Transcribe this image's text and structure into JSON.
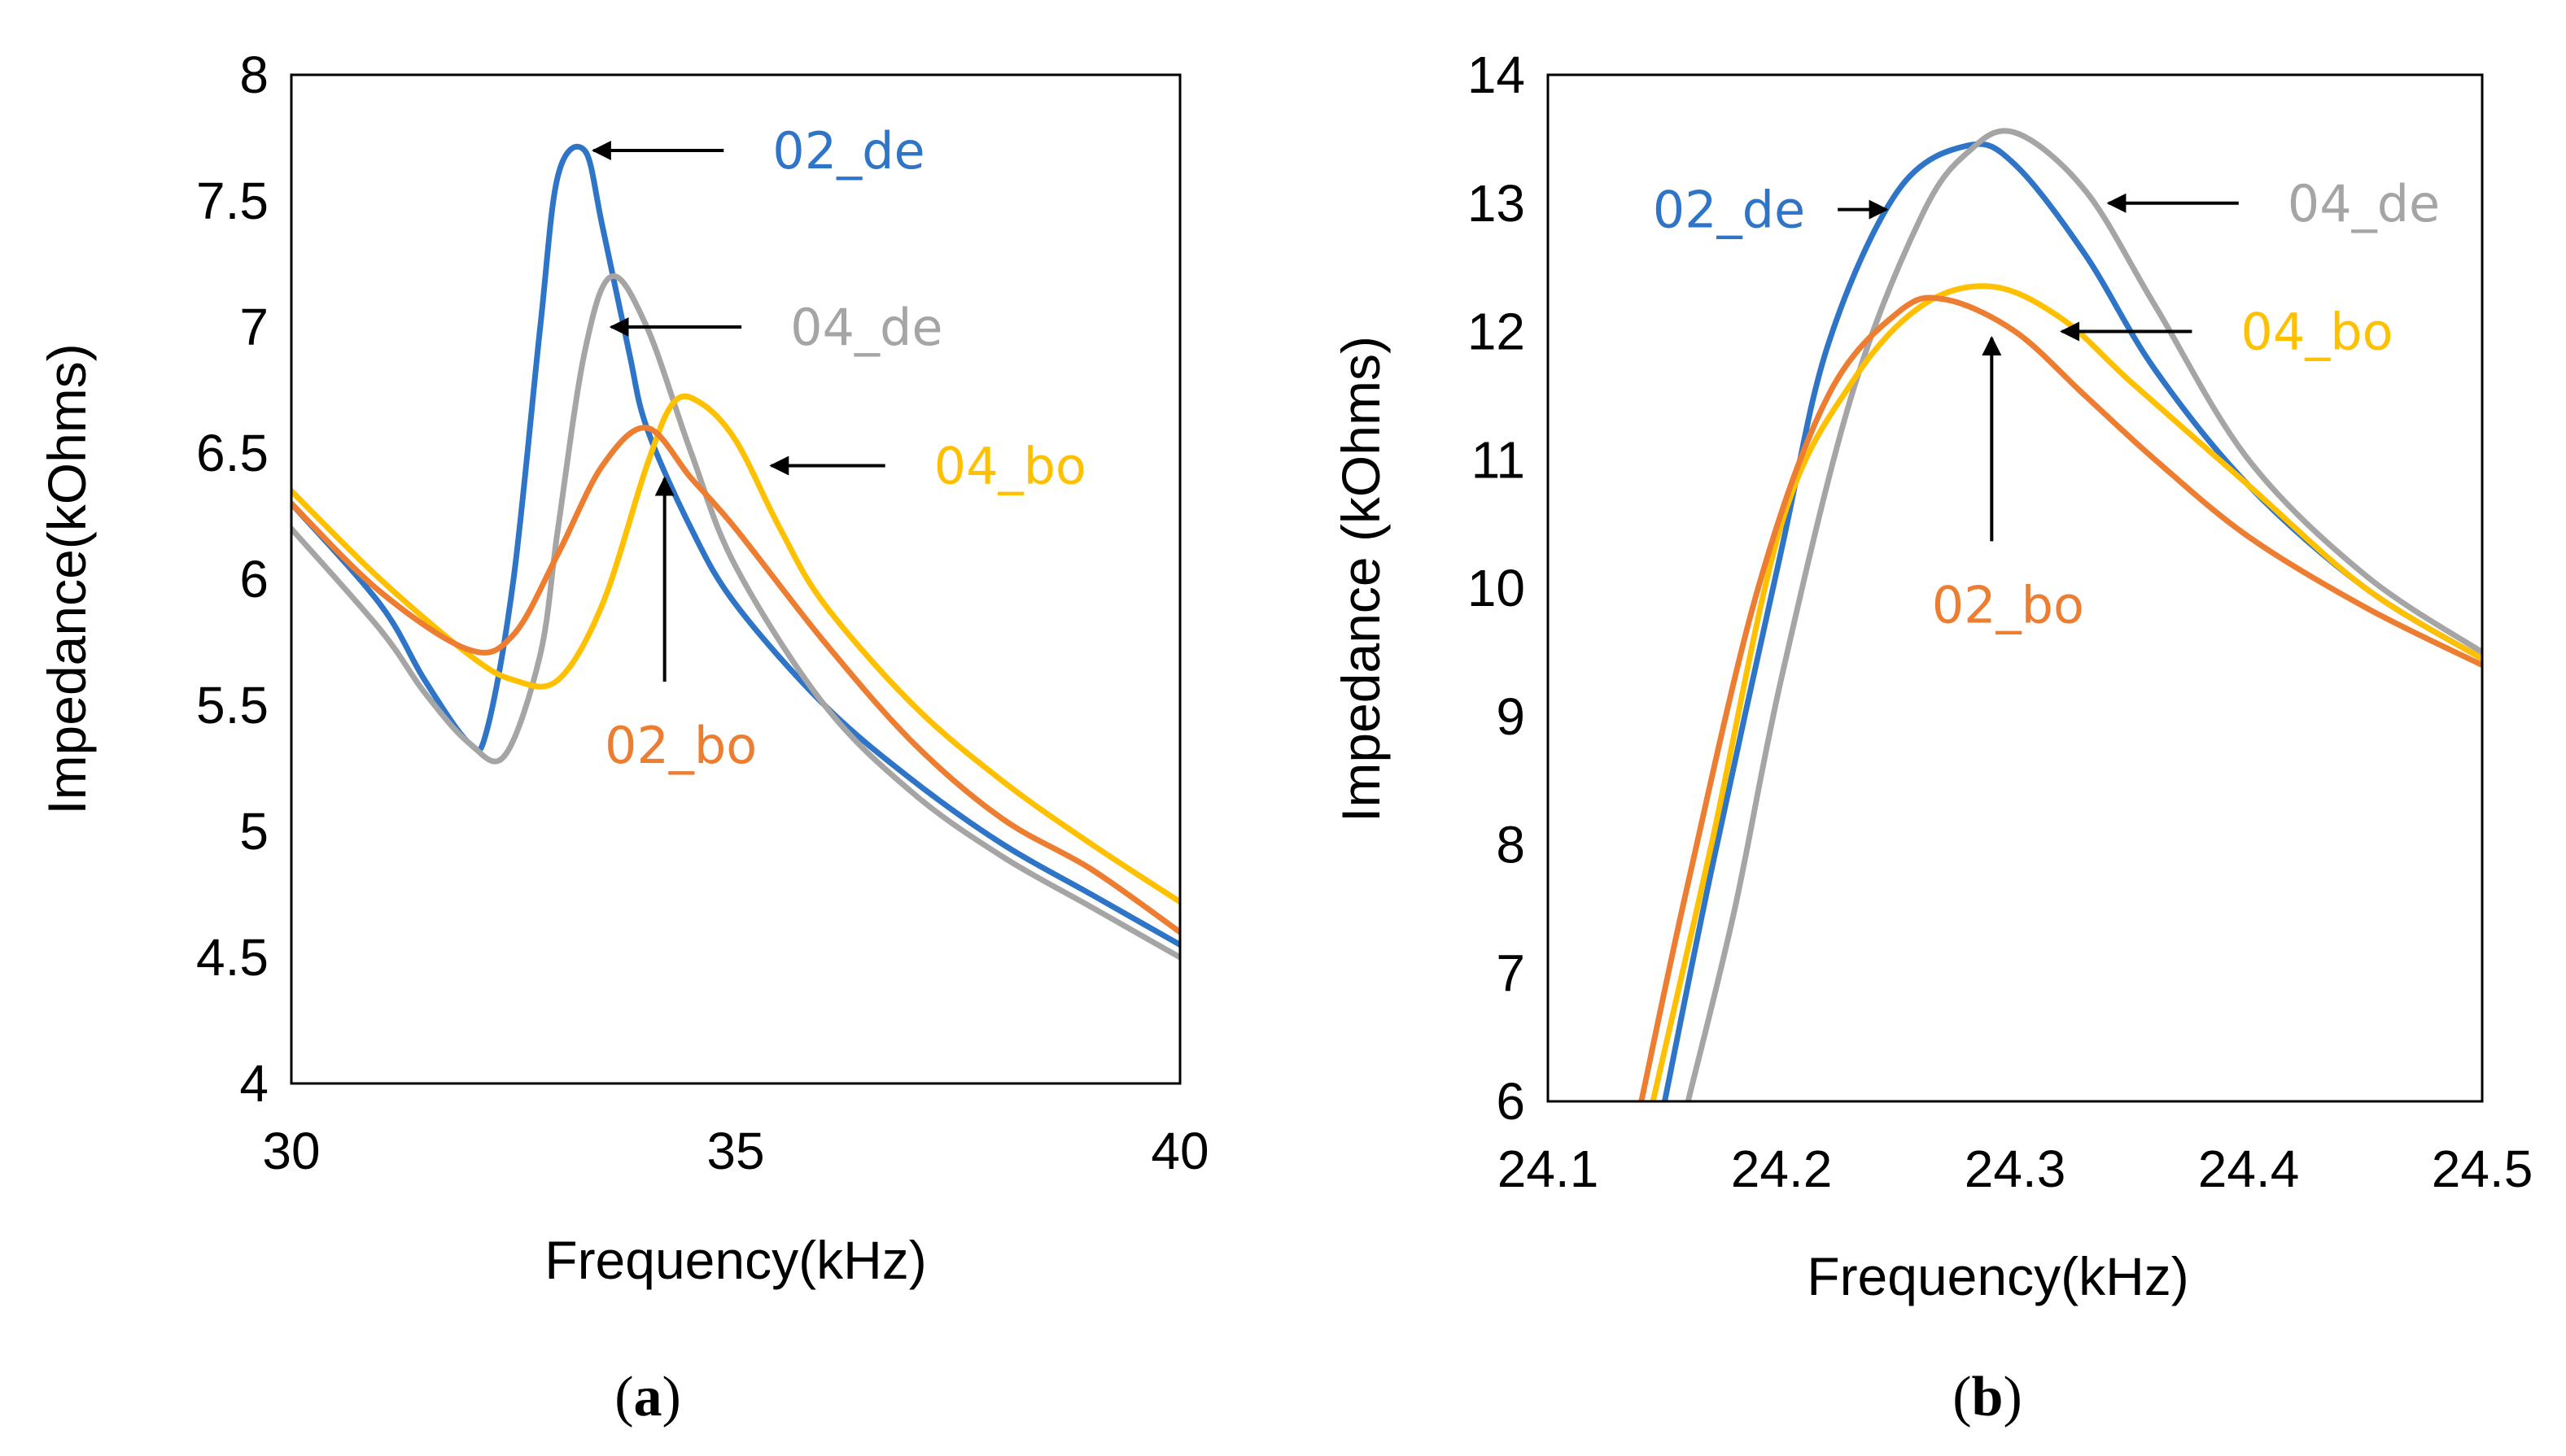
{
  "colors": {
    "02_de": "#2E75C8",
    "04_de": "#A5A5A5",
    "04_bo": "#FFC000",
    "02_bo": "#ED7D31",
    "arrow": "#000000"
  },
  "chart_data": [
    {
      "type": "line",
      "caption": "a",
      "xlabel": "Frequency(kHz)",
      "ylabel": "Impedance(kOhms)",
      "xlim": [
        30,
        40
      ],
      "ylim": [
        4,
        8
      ],
      "xticks": [
        "30",
        "35",
        "40"
      ],
      "yticks": [
        "4",
        "4.5",
        "5",
        "5.5",
        "6",
        "6.5",
        "7",
        "7.5",
        "8"
      ],
      "grid": false,
      "series": [
        {
          "name": "02_de",
          "color_key": "02_de",
          "x": [
            30,
            31,
            31.5,
            32,
            32.2,
            32.5,
            32.8,
            33,
            33.3,
            33.5,
            33.8,
            34,
            34.5,
            35,
            36,
            37,
            38,
            39,
            40
          ],
          "y": [
            6.3,
            5.9,
            5.6,
            5.35,
            5.4,
            6.0,
            7.0,
            7.6,
            7.7,
            7.4,
            6.9,
            6.6,
            6.2,
            5.9,
            5.5,
            5.2,
            4.95,
            4.75,
            4.55
          ]
        },
        {
          "name": "04_de",
          "color_key": "04_de",
          "x": [
            30,
            31,
            31.5,
            32,
            32.4,
            32.8,
            33,
            33.3,
            33.6,
            34,
            34.5,
            35,
            36,
            37,
            38,
            39,
            40
          ],
          "y": [
            6.2,
            5.8,
            5.55,
            5.35,
            5.3,
            5.7,
            6.2,
            6.9,
            7.2,
            7.0,
            6.5,
            6.05,
            5.5,
            5.15,
            4.9,
            4.7,
            4.5
          ]
        },
        {
          "name": "04_bo",
          "color_key": "04_bo",
          "x": [
            30,
            31,
            32,
            32.5,
            33,
            33.5,
            34,
            34.3,
            34.6,
            35,
            35.5,
            36,
            37,
            38,
            39,
            40
          ],
          "y": [
            6.35,
            6.0,
            5.7,
            5.6,
            5.6,
            5.9,
            6.45,
            6.7,
            6.7,
            6.55,
            6.2,
            5.9,
            5.5,
            5.2,
            4.95,
            4.72
          ]
        },
        {
          "name": "02_bo",
          "color_key": "02_bo",
          "x": [
            30,
            31,
            32,
            32.5,
            33,
            33.5,
            34,
            34.5,
            35,
            36,
            37,
            38,
            39,
            40
          ],
          "y": [
            6.3,
            5.95,
            5.72,
            5.78,
            6.1,
            6.45,
            6.6,
            6.4,
            6.2,
            5.75,
            5.35,
            5.05,
            4.85,
            4.6
          ]
        }
      ],
      "annotations": [
        {
          "text": "02_de",
          "color_key": "02_de",
          "arrow_tip": [
            33.4,
            7.7
          ],
          "direction": "left"
        },
        {
          "text": "04_de",
          "color_key": "04_de",
          "arrow_tip": [
            33.6,
            7.0
          ],
          "direction": "left"
        },
        {
          "text": "04_bo",
          "color_key": "04_bo",
          "arrow_tip": [
            35.4,
            6.45
          ],
          "direction": "left"
        },
        {
          "text": "02_bo",
          "color_key": "02_bo",
          "arrow_tip": [
            34.2,
            6.4
          ],
          "direction": "up"
        }
      ]
    },
    {
      "type": "line",
      "caption": "b",
      "xlabel": "Frequency(kHz)",
      "ylabel": "Impedance  (kOhms)",
      "xlim": [
        24.1,
        24.5
      ],
      "ylim": [
        6,
        14
      ],
      "xticks": [
        "24.1",
        "24.2",
        "24.3",
        "24.4",
        "24.5"
      ],
      "yticks": [
        "6",
        "7",
        "8",
        "9",
        "10",
        "11",
        "12",
        "13",
        "14"
      ],
      "grid": false,
      "series": [
        {
          "name": "02_de",
          "color_key": "02_de",
          "x": [
            24.15,
            24.17,
            24.2,
            24.22,
            24.25,
            24.28,
            24.3,
            24.33,
            24.36,
            24.4,
            24.45,
            24.5
          ],
          "y": [
            6.0,
            7.8,
            10.3,
            11.9,
            13.1,
            13.45,
            13.3,
            12.6,
            11.7,
            10.8,
            10.0,
            9.45
          ]
        },
        {
          "name": "04_de",
          "color_key": "04_de",
          "x": [
            24.16,
            24.18,
            24.2,
            24.23,
            24.26,
            24.28,
            24.3,
            24.33,
            24.36,
            24.4,
            24.45,
            24.5
          ],
          "y": [
            6.0,
            7.5,
            9.3,
            11.5,
            12.9,
            13.4,
            13.55,
            13.1,
            12.2,
            11.0,
            10.1,
            9.5
          ]
        },
        {
          "name": "04_bo",
          "color_key": "04_bo",
          "x": [
            24.145,
            24.17,
            24.2,
            24.23,
            24.26,
            24.29,
            24.32,
            24.35,
            24.4,
            24.45,
            24.5
          ],
          "y": [
            6.0,
            8.0,
            10.5,
            11.6,
            12.2,
            12.35,
            12.1,
            11.6,
            10.8,
            10.0,
            9.45
          ]
        },
        {
          "name": "02_bo",
          "color_key": "02_bo",
          "x": [
            24.14,
            24.16,
            24.19,
            24.22,
            24.25,
            24.27,
            24.3,
            24.33,
            24.36,
            24.4,
            24.45,
            24.5
          ],
          "y": [
            6.0,
            7.7,
            10.0,
            11.5,
            12.15,
            12.25,
            12.0,
            11.5,
            11.0,
            10.4,
            9.85,
            9.4
          ]
        }
      ],
      "annotations": [
        {
          "text": "02_de",
          "color_key": "02_de",
          "arrow_tip": [
            24.245,
            12.95
          ],
          "direction": "right"
        },
        {
          "text": "04_de",
          "color_key": "04_de",
          "arrow_tip": [
            24.34,
            13.0
          ],
          "direction": "left"
        },
        {
          "text": "04_bo",
          "color_key": "04_bo",
          "arrow_tip": [
            24.32,
            12.0
          ],
          "direction": "left"
        },
        {
          "text": "02_bo",
          "color_key": "02_bo",
          "arrow_tip": [
            24.29,
            11.95
          ],
          "direction": "up"
        }
      ]
    }
  ]
}
